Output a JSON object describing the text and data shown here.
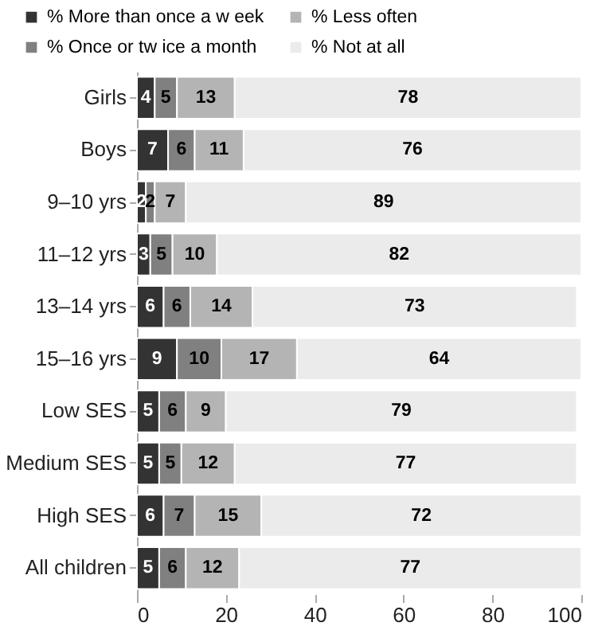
{
  "chart_data": {
    "type": "bar",
    "orientation": "horizontal",
    "stacked": true,
    "data_labels": true,
    "legend": "top",
    "grid": false,
    "categories": [
      "Girls",
      "Boys",
      "9–10 yrs",
      "11–12 yrs",
      "13–14 yrs",
      "15–16 yrs",
      "Low  SES",
      "Medium SES",
      "High SES",
      "All children"
    ],
    "series": [
      {
        "name": "% More than once a w eek",
        "color": "#333333",
        "values": [
          4,
          7,
          2,
          3,
          6,
          9,
          5,
          5,
          6,
          5
        ]
      },
      {
        "name": "% Once or tw ice a month",
        "color": "#808080",
        "values": [
          5,
          6,
          2,
          5,
          6,
          10,
          6,
          5,
          7,
          6
        ]
      },
      {
        "name": "% Less often",
        "color": "#b4b4b4",
        "values": [
          13,
          11,
          7,
          10,
          14,
          17,
          9,
          12,
          15,
          12
        ]
      },
      {
        "name": "% Not at all",
        "color": "#ebebeb",
        "values": [
          78,
          76,
          89,
          82,
          73,
          64,
          79,
          77,
          72,
          77
        ]
      }
    ],
    "xlim": [
      0,
      100
    ],
    "xticks": [
      0,
      20,
      40,
      60,
      80,
      100
    ]
  }
}
